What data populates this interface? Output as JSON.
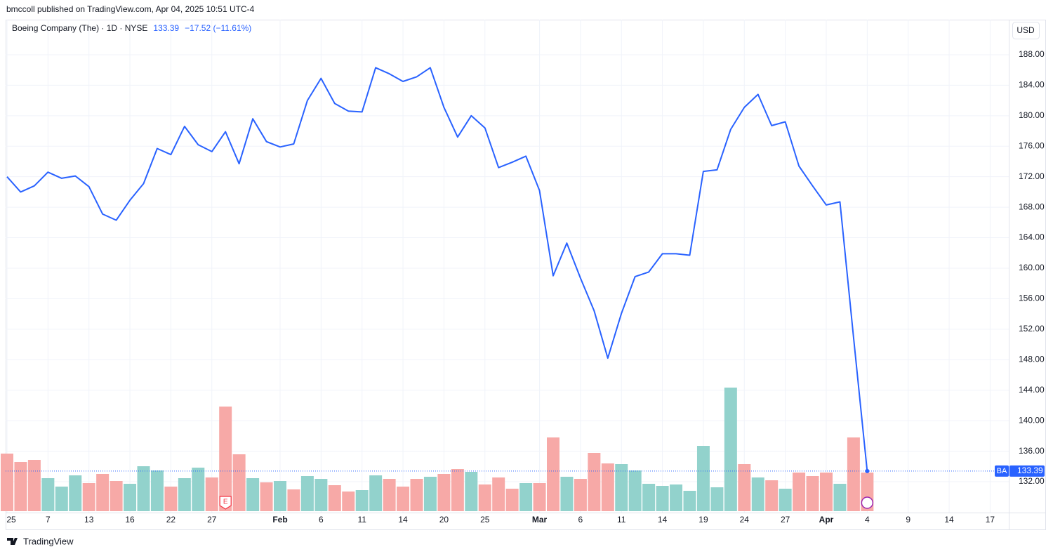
{
  "header": "bmccoll published on TradingView.com, Apr 04, 2025 10:51 UTC-4",
  "footer": "TradingView",
  "chart_data": {
    "type": "line",
    "title": "Boeing Company (The) · 1D · NYSE",
    "change_text": "−17.52 (−11.61%)",
    "currency": "USD",
    "symbol": "BA",
    "earnings_marker": "E",
    "color": "#2962ff",
    "grid": true,
    "categories": [
      "25",
      null,
      null,
      "7",
      null,
      null,
      "13",
      null,
      null,
      "16",
      null,
      null,
      "22",
      null,
      null,
      "27",
      null,
      null,
      null,
      null,
      "Feb",
      null,
      null,
      "6",
      null,
      null,
      "11",
      null,
      null,
      "14",
      null,
      null,
      "20",
      null,
      null,
      "25",
      null,
      null,
      null,
      "Mar",
      null,
      null,
      "6",
      null,
      null,
      "11",
      null,
      null,
      "14",
      null,
      null,
      "19",
      null,
      null,
      "24",
      null,
      null,
      "27",
      null,
      null,
      "Apr",
      null,
      null,
      "4",
      null,
      null,
      "9",
      null,
      null,
      "14",
      null,
      null,
      "17"
    ],
    "values": [
      172.0,
      170.0,
      170.8,
      172.6,
      171.8,
      172.1,
      170.7,
      167.1,
      166.3,
      168.9,
      171.1,
      175.7,
      174.9,
      178.6,
      176.2,
      175.3,
      177.9,
      173.7,
      179.6,
      176.6,
      175.9,
      176.3,
      182.0,
      184.9,
      181.6,
      180.6,
      180.5,
      186.3,
      185.5,
      184.5,
      185.1,
      186.3,
      181.1,
      177.2,
      180.0,
      178.4,
      173.2,
      173.9,
      174.7,
      170.2,
      159.0,
      163.3,
      158.7,
      154.4,
      148.2,
      154.1,
      158.9,
      159.5,
      161.9,
      161.9,
      161.7,
      172.7,
      172.9,
      178.2,
      181.1,
      182.8,
      178.7,
      179.2,
      173.4,
      170.8,
      168.3,
      168.7,
      150.91,
      133.39,
      null,
      null,
      null,
      null,
      null,
      null,
      null,
      null,
      null
    ],
    "ylim": [
      127.95,
      192.6
    ],
    "yticks": [
      {
        "value": 132,
        "label": "132.00"
      },
      {
        "value": 136,
        "label": "136.00"
      },
      {
        "value": 140,
        "label": "140.00"
      },
      {
        "value": 144,
        "label": "144.00"
      },
      {
        "value": 148,
        "label": "148.00"
      },
      {
        "value": 152,
        "label": "152.00"
      },
      {
        "value": 156,
        "label": "156.00"
      },
      {
        "value": 160,
        "label": "160.00"
      },
      {
        "value": 164,
        "label": "164.00"
      },
      {
        "value": 168,
        "label": "168.00"
      },
      {
        "value": 172,
        "label": "172.00"
      },
      {
        "value": 176,
        "label": "176.00"
      },
      {
        "value": 180,
        "label": "180.00"
      },
      {
        "value": 184,
        "label": "184.00"
      },
      {
        "value": 188,
        "label": "188.00"
      }
    ],
    "volume": {
      "ylim": [
        0,
        700
      ],
      "values": [
        82,
        70,
        73,
        47,
        35,
        51,
        40,
        53,
        43,
        39,
        64,
        58,
        35,
        47,
        62,
        48,
        149,
        81,
        47,
        41,
        43,
        31,
        50,
        46,
        37,
        28,
        30,
        51,
        46,
        35,
        46,
        49,
        53,
        60,
        56,
        38,
        48,
        32,
        40,
        40,
        105,
        49,
        46,
        83,
        68,
        67,
        58,
        39,
        36,
        38,
        29,
        93,
        34,
        176,
        67,
        48,
        44,
        32,
        55,
        50,
        55,
        39,
        105,
        55,
        null,
        null,
        null,
        null,
        null,
        null,
        null,
        null,
        null
      ],
      "up_color": "#92d2cc",
      "down_color": "#f7a9a7",
      "up": [
        false,
        false,
        false,
        true,
        true,
        true,
        false,
        false,
        false,
        true,
        true,
        true,
        false,
        true,
        true,
        false,
        false,
        false,
        true,
        false,
        true,
        false,
        true,
        true,
        false,
        false,
        true,
        true,
        false,
        false,
        false,
        true,
        false,
        false,
        true,
        false,
        false,
        false,
        true,
        false,
        false,
        true,
        false,
        false,
        false,
        true,
        true,
        true,
        true,
        true,
        true,
        true,
        true,
        true,
        false,
        true,
        false,
        true,
        false,
        false,
        false,
        true,
        false,
        false,
        null,
        null,
        null,
        null,
        null,
        null,
        null,
        null,
        null
      ]
    }
  }
}
